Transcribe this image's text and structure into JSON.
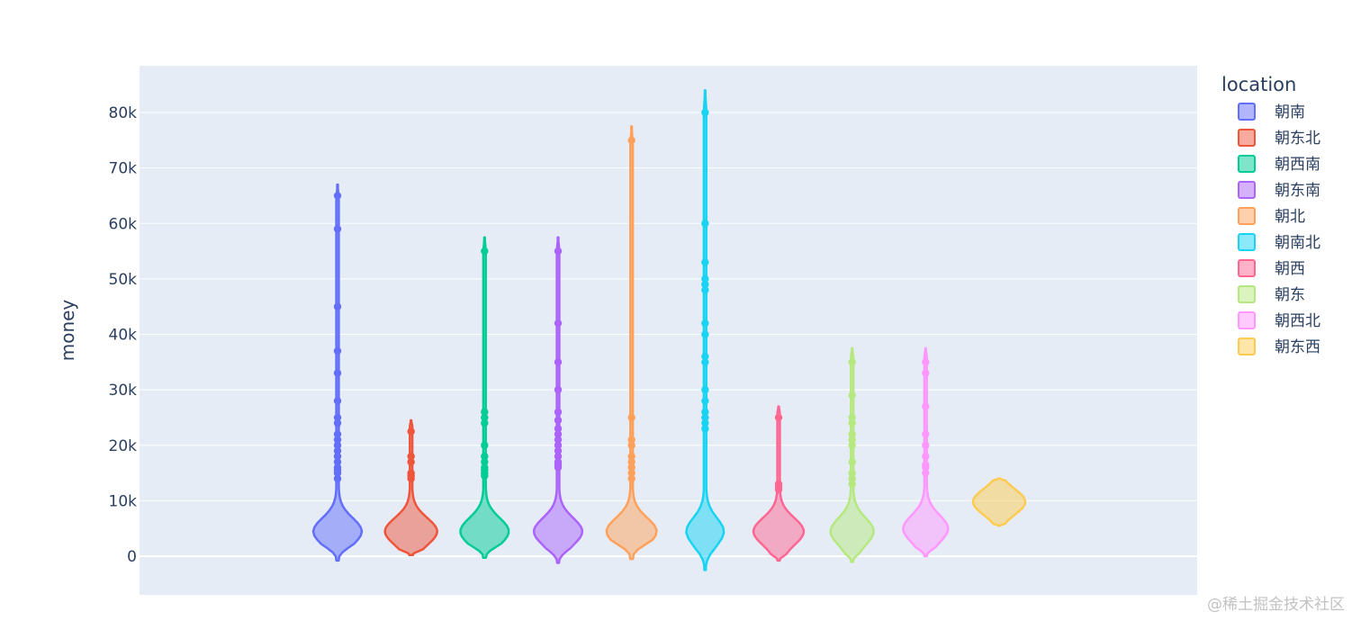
{
  "chart_data": {
    "type": "violin",
    "ylabel": "money",
    "legend_title": "location",
    "legend_position": "right",
    "grid": true,
    "ylim": [
      -7000,
      88500
    ],
    "yticks": [
      0,
      10000,
      20000,
      30000,
      40000,
      50000,
      60000,
      70000,
      80000
    ],
    "yticklabels": [
      "0",
      "10k",
      "20k",
      "30k",
      "40k",
      "50k",
      "60k",
      "70k",
      "80k"
    ],
    "series": [
      {
        "name": "朝南",
        "color": "#636efa",
        "min": -800,
        "max": 67000,
        "bulge_center": 4500,
        "bulge_width": 48,
        "points": [
          65000,
          59000,
          45000,
          37000,
          33000,
          28000,
          25000,
          24000,
          22000,
          21000,
          20000,
          19000,
          18000,
          17000,
          16000,
          15500,
          15000,
          14000
        ]
      },
      {
        "name": "朝东北",
        "color": "#EF553B",
        "min": 200,
        "max": 24500,
        "bulge_center": 4500,
        "bulge_width": 52,
        "points": [
          22500,
          18000,
          17000,
          15000,
          14500,
          14000
        ]
      },
      {
        "name": "朝西南",
        "color": "#00cc96",
        "min": -300,
        "max": 57500,
        "bulge_center": 4500,
        "bulge_width": 48,
        "points": [
          55000,
          26000,
          25000,
          24000,
          20000,
          18000,
          17000,
          16000,
          15500,
          15000,
          14500
        ]
      },
      {
        "name": "朝东南",
        "color": "#ab63fa",
        "min": -1200,
        "max": 57500,
        "bulge_center": 4500,
        "bulge_width": 48,
        "points": [
          55000,
          42000,
          35000,
          30000,
          26000,
          24500,
          23000,
          22000,
          21000,
          20000,
          19000,
          18000,
          17000,
          16500,
          16000
        ]
      },
      {
        "name": "朝北",
        "color": "#FFA15A",
        "min": -500,
        "max": 77500,
        "bulge_center": 4500,
        "bulge_width": 50,
        "points": [
          75000,
          25000,
          21000,
          20000,
          18000,
          17000,
          16000,
          15000,
          14000
        ]
      },
      {
        "name": "朝南北",
        "color": "#19d3f3",
        "min": -2500,
        "max": 84000,
        "bulge_center": 4500,
        "bulge_width": 36,
        "points": [
          80000,
          60000,
          53000,
          50000,
          49000,
          48000,
          42000,
          40000,
          36000,
          35000,
          30000,
          28000,
          26000,
          25000,
          24000,
          23000
        ]
      },
      {
        "name": "朝西",
        "color": "#FF6692",
        "min": -800,
        "max": 27000,
        "bulge_center": 4500,
        "bulge_width": 50,
        "points": [
          25000,
          13000,
          12500,
          12000
        ]
      },
      {
        "name": "朝东",
        "color": "#B6E880",
        "min": -1000,
        "max": 37500,
        "bulge_center": 4500,
        "bulge_width": 42,
        "points": [
          35000,
          29000,
          25000,
          24000,
          22000,
          21000,
          20000,
          17000,
          15000,
          14000,
          13000
        ]
      },
      {
        "name": "朝西北",
        "color": "#FF97FF",
        "min": 0,
        "max": 37500,
        "bulge_center": 5000,
        "bulge_width": 44,
        "points": [
          35000,
          33000,
          27000,
          22000,
          20000,
          18000,
          16500,
          16000,
          15000
        ]
      },
      {
        "name": "朝东西",
        "color": "#FECB52",
        "min": 5500,
        "max": 14000,
        "bulge_center": 9800,
        "bulge_width": 58,
        "points": []
      }
    ]
  },
  "watermark": "@稀土掘金技术社区"
}
